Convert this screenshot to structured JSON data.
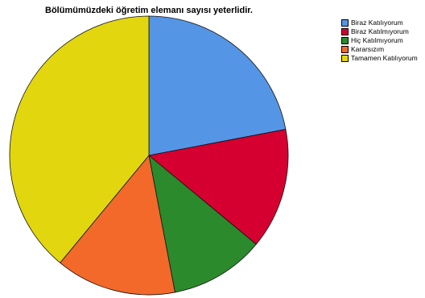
{
  "chart_data": {
    "type": "pie",
    "title": "Bölümümüzdeki öğretim elemanı sayısı yeterlidir.",
    "categories": [
      "Biraz Katılıyorum",
      "Biraz Katılmıyorum",
      "Hiç Katılmıyorum",
      "Kararsızım",
      "Tamamen Katılıyorum"
    ],
    "values": [
      22,
      14,
      11,
      14,
      39
    ],
    "colors": [
      "#5595e6",
      "#d5002f",
      "#2b8a2b",
      "#f2692a",
      "#e2d60f"
    ],
    "legend_position": "top-right"
  }
}
